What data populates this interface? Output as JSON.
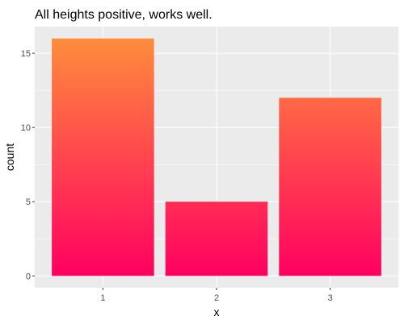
{
  "chart_data": {
    "type": "bar",
    "title": "All heights positive, works well.",
    "xlabel": "x",
    "ylabel": "count",
    "categories": [
      "1",
      "2",
      "3"
    ],
    "values": [
      16,
      5,
      12
    ],
    "ylim": [
      -0.8,
      16.8
    ],
    "yticks": [
      0,
      5,
      10,
      15
    ],
    "grid": true,
    "colors": {
      "panel_background": "#ebebeb",
      "grid": "#ffffff",
      "bar_top": "#ff8c3c",
      "bar_bottom": "#ff0060"
    }
  }
}
